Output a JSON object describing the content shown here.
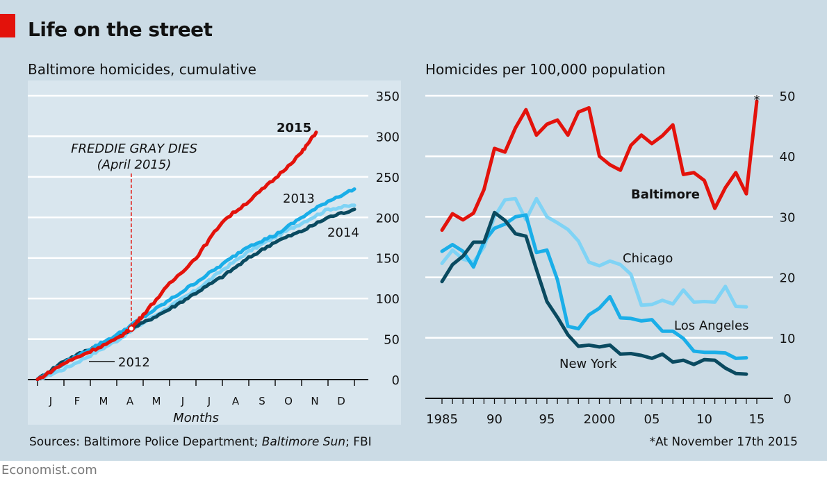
{
  "title": "Life on the street",
  "source_prefix": "Sources: Baltimore Police Department; ",
  "source_italic": "Baltimore Sun",
  "source_suffix": "; FBI",
  "footnote": "*At November 17th 2015",
  "brand": "Economist.com",
  "colors": {
    "red": "#e3120b",
    "dark": "#0a4a60",
    "mid": "#1aaee8",
    "light": "#7fd3f5",
    "background": "#cbdbe5",
    "inner_panel": "#d9e6ee"
  },
  "chart_data": [
    {
      "type": "line",
      "title": "Baltimore homicides, cumulative",
      "xlabel": "Months",
      "categories": [
        "J",
        "F",
        "M",
        "A",
        "M",
        "J",
        "J",
        "A",
        "S",
        "O",
        "N",
        "D"
      ],
      "ylim": [
        0,
        350
      ],
      "yticks": [
        0,
        50,
        100,
        150,
        200,
        250,
        300,
        350
      ],
      "y_axis_side": "right",
      "grid": true,
      "annotation": {
        "label": "FREDDIE GRAY DIES",
        "sub": "(April 2015)",
        "x": 3.55,
        "y": 63
      },
      "series": [
        {
          "name": "2012",
          "color": "light",
          "x": [
            0,
            1,
            2,
            3,
            4,
            5,
            6,
            7,
            8,
            9,
            10,
            11,
            12
          ],
          "values": [
            0,
            13,
            30,
            48,
            70,
            90,
            110,
            135,
            158,
            176,
            193,
            210,
            215
          ]
        },
        {
          "name": "2013",
          "color": "mid",
          "x": [
            0,
            1,
            2,
            3,
            4,
            5,
            6,
            7,
            8,
            9,
            10,
            11,
            12
          ],
          "values": [
            0,
            20,
            38,
            55,
            77,
            98,
            120,
            142,
            165,
            178,
            200,
            220,
            235
          ]
        },
        {
          "name": "2014",
          "color": "dark",
          "x": [
            0,
            1,
            2,
            3,
            4,
            5,
            6,
            7,
            8,
            9,
            10,
            11,
            12
          ],
          "values": [
            0,
            23,
            38,
            53,
            70,
            87,
            107,
            127,
            150,
            170,
            183,
            200,
            210
          ]
        },
        {
          "name": "2015",
          "color": "red",
          "x": [
            0,
            1,
            2,
            3,
            3.55,
            4,
            5,
            6,
            7,
            8,
            9,
            10,
            10.55
          ],
          "values": [
            0,
            20,
            35,
            50,
            63,
            80,
            118,
            150,
            195,
            220,
            248,
            280,
            305
          ]
        }
      ]
    },
    {
      "type": "line",
      "title": "Homicides per 100,000 population",
      "x_ticks": [
        1985,
        1990,
        1995,
        2000,
        2005,
        2010,
        2015
      ],
      "x_tick_labels": [
        "1985",
        "90",
        "95",
        "2000",
        "05",
        "10",
        "15"
      ],
      "xlim": [
        1984,
        2016
      ],
      "ylim": [
        0,
        50
      ],
      "yticks": [
        0,
        10,
        20,
        30,
        40,
        50
      ],
      "y_axis_side": "right",
      "grid": true,
      "star_label": "*",
      "series": [
        {
          "name": "Baltimore",
          "color": "red",
          "x": [
            1985,
            1986,
            1987,
            1988,
            1989,
            1990,
            1991,
            1992,
            1993,
            1994,
            1995,
            1996,
            1997,
            1998,
            1999,
            2000,
            2001,
            2002,
            2003,
            2004,
            2005,
            2006,
            2007,
            2008,
            2009,
            2010,
            2011,
            2012,
            2013,
            2014,
            2015
          ],
          "values": [
            27.8,
            30.5,
            29.5,
            30.6,
            34.5,
            41.3,
            40.7,
            44.7,
            47.7,
            43.5,
            45.3,
            46,
            43.5,
            47.3,
            48,
            40,
            38.6,
            37.7,
            41.8,
            43.5,
            42.1,
            43.4,
            45.2,
            37,
            37.3,
            36,
            31.4,
            34.8,
            37.3,
            33.8,
            49.1
          ]
        },
        {
          "name": "Chicago",
          "color": "light",
          "x": [
            1985,
            1986,
            1987,
            1988,
            1989,
            1990,
            1991,
            1992,
            1993,
            1994,
            1995,
            1996,
            1997,
            1998,
            1999,
            2000,
            2001,
            2002,
            2003,
            2004,
            2005,
            2006,
            2007,
            2008,
            2009,
            2010,
            2011,
            2012,
            2013,
            2014
          ],
          "values": [
            22.3,
            24.5,
            23,
            22.5,
            25,
            30,
            32.8,
            33,
            29.5,
            33,
            30,
            29,
            27.9,
            26,
            22.5,
            21.9,
            22.7,
            22.1,
            20.5,
            15.4,
            15.5,
            16.2,
            15.6,
            17.9,
            15.9,
            16,
            15.9,
            18.5,
            15.2,
            15.1
          ]
        },
        {
          "name": "Los Angeles",
          "color": "mid",
          "x": [
            1985,
            1986,
            1987,
            1988,
            1989,
            1990,
            1991,
            1992,
            1993,
            1994,
            1995,
            1996,
            1997,
            1998,
            1999,
            2000,
            2001,
            2002,
            2003,
            2004,
            2005,
            2006,
            2007,
            2008,
            2009,
            2010,
            2011,
            2012,
            2013,
            2014
          ],
          "values": [
            24.3,
            25.4,
            24.3,
            21.7,
            25.9,
            28.1,
            28.8,
            30,
            30.3,
            24.1,
            24.5,
            19.6,
            11.9,
            11.5,
            13.8,
            14.9,
            16.8,
            13.3,
            13.2,
            12.8,
            13,
            11.1,
            11.1,
            9.9,
            7.8,
            7.6,
            7.6,
            7.5,
            6.6,
            6.7
          ]
        },
        {
          "name": "New York",
          "color": "dark",
          "x": [
            1985,
            1986,
            1987,
            1988,
            1989,
            1990,
            1991,
            1992,
            1993,
            1994,
            1995,
            1996,
            1997,
            1998,
            1999,
            2000,
            2001,
            2002,
            2003,
            2004,
            2005,
            2006,
            2007,
            2008,
            2009,
            2010,
            2011,
            2012,
            2013,
            2014
          ],
          "values": [
            19.3,
            22.1,
            23.5,
            25.8,
            25.8,
            30.7,
            29.4,
            27.2,
            26.8,
            21.3,
            16,
            13.4,
            10.5,
            8.6,
            8.8,
            8.5,
            8.8,
            7.3,
            7.4,
            7.1,
            6.6,
            7.3,
            6,
            6.3,
            5.6,
            6.4,
            6.3,
            5,
            4.1,
            4
          ]
        }
      ]
    }
  ]
}
